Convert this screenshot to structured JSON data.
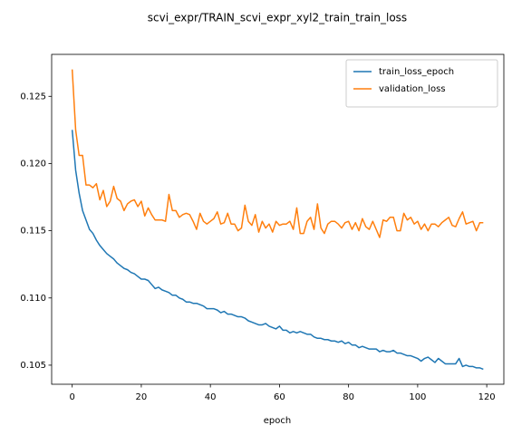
{
  "chart_data": {
    "type": "line",
    "title": "scvi_expr/TRAIN_scvi_expr_xyl2_train_train_loss",
    "x_label": "epoch",
    "x": [
      0,
      1,
      2,
      3,
      4,
      5,
      6,
      7,
      8,
      9,
      10,
      11,
      12,
      13,
      14,
      15,
      16,
      17,
      18,
      19,
      20,
      21,
      22,
      23,
      24,
      25,
      26,
      27,
      28,
      29,
      30,
      31,
      32,
      33,
      34,
      35,
      36,
      37,
      38,
      39,
      40,
      41,
      42,
      43,
      44,
      45,
      46,
      47,
      48,
      49,
      50,
      51,
      52,
      53,
      54,
      55,
      56,
      57,
      58,
      59,
      60,
      61,
      62,
      63,
      64,
      65,
      66,
      67,
      68,
      69,
      70,
      71,
      72,
      73,
      74,
      75,
      76,
      77,
      78,
      79,
      80,
      81,
      82,
      83,
      84,
      85,
      86,
      87,
      88,
      89,
      90,
      91,
      92,
      93,
      94,
      95,
      96,
      97,
      98,
      99,
      100,
      101,
      102,
      103,
      104,
      105,
      106,
      107,
      108,
      109,
      110,
      111,
      112,
      113,
      114,
      115,
      116,
      117,
      118,
      119
    ],
    "series": [
      {
        "name": "train_loss_epoch",
        "color": "#1f77b4",
        "values": [
          0.1225,
          0.1195,
          0.1178,
          0.1165,
          0.1158,
          0.1151,
          0.1148,
          0.1143,
          0.1139,
          0.1136,
          0.1133,
          0.1131,
          0.1129,
          0.1126,
          0.1124,
          0.1122,
          0.1121,
          0.1119,
          0.1118,
          0.1116,
          0.1114,
          0.1114,
          0.1113,
          0.111,
          0.1107,
          0.1108,
          0.1106,
          0.1105,
          0.1104,
          0.1102,
          0.1102,
          0.11,
          0.1099,
          0.1097,
          0.1097,
          0.1096,
          0.1096,
          0.1095,
          0.1094,
          0.1092,
          0.1092,
          0.1092,
          0.1091,
          0.1089,
          0.109,
          0.1088,
          0.1088,
          0.1087,
          0.1086,
          0.1086,
          0.1085,
          0.1083,
          0.1082,
          0.1081,
          0.108,
          0.108,
          0.1081,
          0.1079,
          0.1078,
          0.1077,
          0.1079,
          0.1076,
          0.1076,
          0.1074,
          0.1075,
          0.1074,
          0.1075,
          0.1074,
          0.1073,
          0.1073,
          0.1071,
          0.107,
          0.107,
          0.1069,
          0.1069,
          0.1068,
          0.1068,
          0.1067,
          0.1068,
          0.1066,
          0.1067,
          0.1065,
          0.1065,
          0.1063,
          0.1064,
          0.1063,
          0.1062,
          0.1062,
          0.1062,
          0.106,
          0.1061,
          0.106,
          0.106,
          0.1061,
          0.1059,
          0.1059,
          0.1058,
          0.1057,
          0.1057,
          0.1056,
          0.1055,
          0.1053,
          0.1055,
          0.1056,
          0.1054,
          0.1052,
          0.1055,
          0.1053,
          0.1051,
          0.1051,
          0.1051,
          0.1051,
          0.1055,
          0.1049,
          0.105,
          0.1049,
          0.1049,
          0.1048,
          0.1048,
          0.1047
        ]
      },
      {
        "name": "validation_loss",
        "color": "#ff7f0e",
        "values": [
          0.127,
          0.1225,
          0.1206,
          0.1206,
          0.1184,
          0.1184,
          0.1182,
          0.1185,
          0.1173,
          0.118,
          0.1168,
          0.1172,
          0.1183,
          0.1174,
          0.1172,
          0.1165,
          0.117,
          0.1172,
          0.1173,
          0.1168,
          0.1172,
          0.1161,
          0.1167,
          0.1162,
          0.1158,
          0.1158,
          0.1158,
          0.1157,
          0.1177,
          0.1165,
          0.1165,
          0.116,
          0.1162,
          0.1163,
          0.1162,
          0.1157,
          0.1151,
          0.1163,
          0.1157,
          0.1155,
          0.1157,
          0.1159,
          0.1164,
          0.1155,
          0.1156,
          0.1163,
          0.1155,
          0.1155,
          0.115,
          0.1152,
          0.1169,
          0.1157,
          0.1154,
          0.1162,
          0.1149,
          0.1157,
          0.1152,
          0.1155,
          0.1149,
          0.1157,
          0.1154,
          0.1155,
          0.1155,
          0.1157,
          0.1151,
          0.1167,
          0.1148,
          0.1148,
          0.1157,
          0.116,
          0.1151,
          0.117,
          0.1152,
          0.1148,
          0.1155,
          0.1157,
          0.1157,
          0.1155,
          0.1152,
          0.1156,
          0.1157,
          0.1151,
          0.1156,
          0.115,
          0.1159,
          0.1153,
          0.1151,
          0.1157,
          0.1151,
          0.1145,
          0.1158,
          0.1157,
          0.116,
          0.116,
          0.115,
          0.115,
          0.1163,
          0.1158,
          0.116,
          0.1155,
          0.1157,
          0.1151,
          0.1155,
          0.115,
          0.1155,
          0.1155,
          0.1153,
          0.1156,
          0.1158,
          0.116,
          0.1154,
          0.1153,
          0.1159,
          0.1164,
          0.1155,
          0.1156,
          0.1157,
          0.115,
          0.1156,
          0.1156
        ]
      }
    ],
    "xlim": [
      -5.95,
      124.95
    ],
    "xticks": [
      0,
      20,
      40,
      60,
      80,
      100,
      120
    ],
    "ylim": [
      0.10358,
      0.12812
    ],
    "yticks": [
      0.105,
      {
        "value": 0.11,
        "label": "0.110"
      },
      0.115,
      {
        "value": 0.12,
        "label": "0.120"
      },
      0.125
    ],
    "grid": false,
    "legend": "upper right"
  }
}
